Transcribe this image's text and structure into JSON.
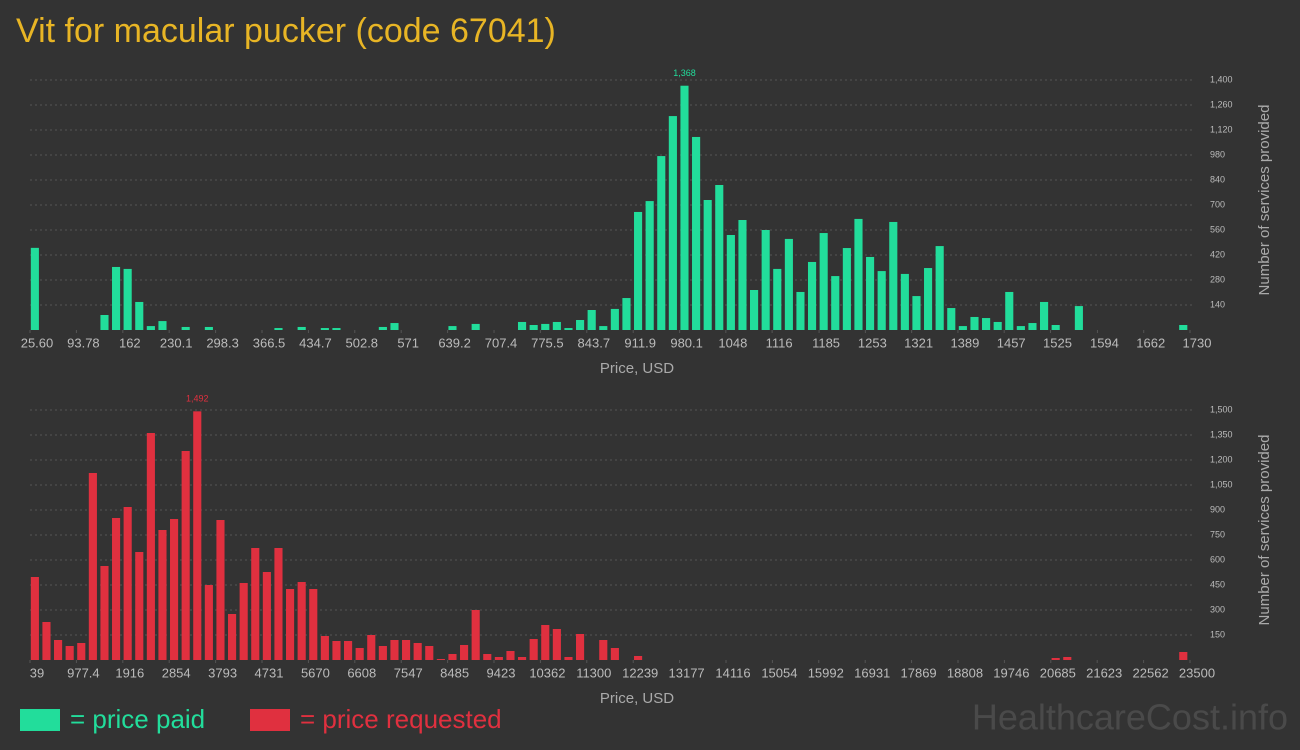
{
  "title": "Vit for macular pucker (code 67041)",
  "watermark": "HealthcareCost.info",
  "chart_data": [
    {
      "type": "histogram",
      "xlabel": "Price, USD",
      "ylabel": "Number of services provided",
      "bins": [
        25.6,
        42.6,
        59.7,
        76.7,
        93.8,
        110.8,
        127.9,
        144.9,
        161.9,
        179.0,
        196.0,
        213.1,
        230.1,
        247.2,
        264.2,
        281.3,
        298.3,
        315.3,
        332.4,
        349.4,
        366.5,
        383.5,
        400.6,
        417.6,
        434.7,
        451.7,
        468.7,
        485.8,
        502.8,
        519.9,
        536.9,
        554.0,
        571.0,
        588.1,
        605.1,
        622.1,
        639.2,
        656.2,
        673.3,
        690.3,
        707.4,
        724.4,
        741.4,
        758.5,
        775.5,
        792.6,
        809.6,
        826.7,
        843.7,
        860.8,
        877.8,
        894.8,
        911.9,
        928.9,
        946.0,
        963.0,
        980.1,
        997.1,
        1014.2,
        1031.2,
        1048.2,
        1065.3,
        1082.3,
        1099.4,
        1116.4,
        1133.5,
        1150.5,
        1167.5,
        1184.6,
        1201.6,
        1218.7,
        1235.7,
        1252.8,
        1269.8,
        1286.9,
        1303.9,
        1320.9,
        1338.0,
        1355.0,
        1372.1,
        1389.1,
        1406.2,
        1423.2,
        1440.3,
        1457.3,
        1474.3,
        1491.4,
        1508.4,
        1525.5,
        1542.5,
        1559.6,
        1576.6,
        1593.6,
        1610.7,
        1627.7,
        1644.8,
        1661.8,
        1678.9,
        1695.9,
        1712.9,
        1730.0
      ],
      "series": [
        {
          "name": "= price paid",
          "color": "#22dd9b",
          "values": [
            460,
            0,
            0,
            0,
            0,
            0,
            84,
            353,
            342,
            157,
            22,
            50,
            0,
            17,
            0,
            17,
            0,
            0,
            0,
            0,
            0,
            11,
            0,
            17,
            0,
            11,
            11,
            0,
            0,
            0,
            17,
            39,
            0,
            0,
            0,
            0,
            22,
            0,
            34,
            0,
            0,
            0,
            45,
            28,
            34,
            45,
            11,
            56,
            112,
            22,
            118,
            179,
            661,
            722,
            974,
            1198,
            1368,
            1081,
            728,
            812,
            532,
            616,
            224,
            560,
            342,
            510,
            213,
            381,
            543,
            302,
            459,
            622,
            409,
            330,
            605,
            314,
            190,
            347,
            470,
            123,
            22,
            73,
            67,
            45,
            213,
            22,
            39,
            157,
            28,
            0,
            134,
            0,
            0,
            0,
            0,
            0,
            0,
            0,
            0,
            28
          ],
          "value_labels": [
            null,
            null,
            null,
            null,
            null,
            null,
            null,
            null,
            null,
            null,
            null,
            null,
            null,
            null,
            null,
            null,
            null,
            null,
            null,
            null,
            null,
            null,
            null,
            null,
            null,
            null,
            null,
            null,
            null,
            null,
            null,
            null,
            null,
            null,
            null,
            null,
            null,
            null,
            null,
            null,
            null,
            null,
            null,
            null,
            null,
            null,
            null,
            null,
            null,
            null,
            null,
            null,
            null,
            null,
            null,
            null,
            "1,368",
            null,
            null,
            null,
            null,
            null,
            null,
            null,
            null,
            null,
            null,
            null,
            null,
            null,
            null,
            null,
            null,
            null,
            null,
            null,
            null,
            null,
            null,
            null,
            null,
            null,
            null,
            null,
            null,
            null,
            null,
            null,
            null,
            null,
            null,
            null,
            null,
            null,
            null,
            null,
            null,
            null,
            null,
            null
          ]
        }
      ],
      "xlim": [
        25.6,
        1730
      ],
      "xticks": [
        {
          "value": 25.6,
          "label": "25.60"
        },
        93.78,
        162,
        230.1,
        298.3,
        366.5,
        434.7,
        502.8,
        571,
        639.2,
        707.4,
        775.5,
        843.7,
        911.9,
        980.1,
        1048,
        1116,
        1185,
        1253,
        1321,
        1389,
        1457,
        1525,
        1594,
        1662,
        1730
      ],
      "ylim": [
        0,
        1400
      ],
      "yticks": [
        140,
        280,
        420,
        560,
        700,
        840,
        980,
        {
          "value": 1120,
          "label": "1,120"
        },
        {
          "value": 1260,
          "label": "1,260"
        },
        {
          "value": 1400,
          "label": "1,400"
        }
      ],
      "grid": true
    },
    {
      "type": "histogram",
      "xlabel": "Price, USD",
      "ylabel": "Number of services provided",
      "bins": [
        39,
        273.6,
        508.2,
        742.8,
        977.4,
        1212.1,
        1446.7,
        1681.3,
        1915.9,
        2150.5,
        2385.1,
        2619.7,
        2854.3,
        3088.9,
        3323.5,
        3558.2,
        3792.8,
        4027.4,
        4262.0,
        4496.6,
        4731.2,
        4965.8,
        5200.4,
        5435.0,
        5669.6,
        5904.3,
        6138.9,
        6373.5,
        6608.1,
        6842.7,
        7077.3,
        7311.9,
        7546.5,
        7781.1,
        8015.7,
        8250.4,
        8485.0,
        8719.6,
        8954.2,
        9188.8,
        9423.4,
        9658.0,
        9892.6,
        10127.2,
        10361.8,
        10596.5,
        10831.1,
        11065.7,
        11300.3,
        11534.9,
        11769.5,
        12004.1,
        12238.7,
        12473.3,
        12707.9,
        12942.6,
        13177.2,
        13411.8,
        13646.4,
        13881.0,
        14115.6,
        14350.2,
        14584.8,
        14819.4,
        15054.0,
        15288.7,
        15523.3,
        15757.9,
        15992.5,
        16227.1,
        16461.7,
        16696.3,
        16930.9,
        17165.5,
        17400.1,
        17634.8,
        17869.4,
        18104.0,
        18338.6,
        18573.2,
        18807.8,
        19042.4,
        19277.0,
        19511.6,
        19746.2,
        19980.9,
        20215.5,
        20450.1,
        20684.7,
        20919.3,
        21153.9,
        21388.5,
        21623.1,
        21857.7,
        22092.3,
        22327.0,
        22561.6,
        22796.2,
        23030.8,
        23265.4,
        23500
      ],
      "series": [
        {
          "name": "= price requested",
          "color": "#e0303f",
          "values": [
            498,
            228,
            120,
            84,
            102,
            1122,
            564,
            852,
            918,
            648,
            1362,
            780,
            846,
            1254,
            1492,
            450,
            840,
            276,
            462,
            672,
            528,
            672,
            426,
            468,
            426,
            144,
            114,
            114,
            72,
            150,
            84,
            120,
            120,
            102,
            84,
            6,
            36,
            90,
            300,
            36,
            18,
            54,
            18,
            126,
            210,
            186,
            18,
            156,
            0,
            120,
            72,
            0,
            24,
            0,
            0,
            0,
            0,
            0,
            0,
            0,
            0,
            0,
            0,
            0,
            0,
            0,
            0,
            0,
            0,
            0,
            0,
            0,
            0,
            0,
            0,
            0,
            0,
            0,
            0,
            0,
            0,
            0,
            0,
            0,
            0,
            0,
            0,
            0,
            12,
            18,
            0,
            0,
            0,
            0,
            0,
            0,
            0,
            0,
            0,
            48
          ],
          "value_labels": [
            null,
            null,
            null,
            null,
            null,
            null,
            null,
            null,
            null,
            null,
            null,
            null,
            null,
            null,
            "1,492",
            null,
            null,
            null,
            null,
            null,
            null,
            null,
            null,
            null,
            null,
            null,
            null,
            null,
            null,
            null,
            null,
            null,
            null,
            null,
            null,
            null,
            null,
            null,
            null,
            null,
            null,
            null,
            null,
            null,
            null,
            null,
            null,
            null,
            null,
            null,
            null,
            null,
            null,
            null,
            null,
            null,
            null,
            null,
            null,
            null,
            null,
            null,
            null,
            null,
            null,
            null,
            null,
            null,
            null,
            null,
            null,
            null,
            null,
            null,
            null,
            null,
            null,
            null,
            null,
            null,
            null,
            null,
            null,
            null,
            null,
            null,
            null,
            null,
            null,
            null,
            null,
            null,
            null,
            null,
            null,
            null,
            null,
            null,
            null,
            null
          ]
        }
      ],
      "xlim": [
        39,
        23500
      ],
      "xticks": [
        39,
        977.4,
        1916,
        2854,
        3793,
        4731,
        5670,
        6608,
        7547,
        8485,
        9423,
        10362,
        11300,
        12239,
        13177,
        14116,
        15054,
        15992,
        16931,
        17869,
        18808,
        19746,
        20685,
        21623,
        22562,
        23500
      ],
      "ylim": [
        0,
        1500
      ],
      "yticks": [
        150,
        300,
        450,
        600,
        750,
        900,
        {
          "value": 1050,
          "label": "1,050"
        },
        {
          "value": 1200,
          "label": "1,200"
        },
        {
          "value": 1350,
          "label": "1,350"
        },
        {
          "value": 1500,
          "label": "1,500"
        }
      ],
      "grid": true
    }
  ]
}
